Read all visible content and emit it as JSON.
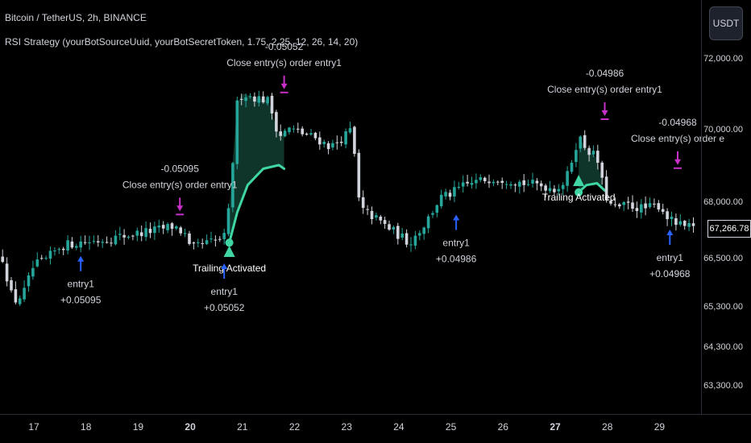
{
  "header": {
    "symbol": "Bitcoin / TetherUS, 2h, BINANCE",
    "strategy": "RSI Strategy (yourBotSourceUuid, yourBotSecretToken, 1.75, 2.25, 12, 26, 14, 20)"
  },
  "currency_label": "USDT",
  "last_price_label": "67,266.78",
  "colors": {
    "up": "#26a69a",
    "down": "#d1d4dc",
    "trail": "#3fd6a4",
    "close_marker": "#c82fc8",
    "entry_marker": "#2962ff"
  },
  "chart_data": {
    "type": "candlestick",
    "x_ticks": [
      {
        "label": "17",
        "day": 17
      },
      {
        "label": "18",
        "day": 18
      },
      {
        "label": "19",
        "day": 19
      },
      {
        "label": "20",
        "day": 20,
        "bold": true
      },
      {
        "label": "21",
        "day": 21
      },
      {
        "label": "22",
        "day": 22
      },
      {
        "label": "23",
        "day": 23
      },
      {
        "label": "24",
        "day": 24
      },
      {
        "label": "25",
        "day": 25
      },
      {
        "label": "26",
        "day": 26
      },
      {
        "label": "27",
        "day": 27,
        "bold": true
      },
      {
        "label": "28",
        "day": 28
      },
      {
        "label": "29",
        "day": 29
      }
    ],
    "y_ticks": [
      {
        "label": "72,000.00",
        "value": 72000
      },
      {
        "label": "70,000.00",
        "value": 70000
      },
      {
        "label": "68,000.00",
        "value": 68000
      },
      {
        "label": "66,500.00",
        "value": 66500
      },
      {
        "label": "65,300.00",
        "value": 65300
      },
      {
        "label": "64,300.00",
        "value": 64300
      },
      {
        "label": "63,300.00",
        "value": 63300
      }
    ],
    "last_price": 67266.78,
    "close_path": [
      [
        16.4,
        66500
      ],
      [
        16.6,
        65400
      ],
      [
        16.8,
        65600
      ],
      [
        17.0,
        66300
      ],
      [
        17.2,
        66400
      ],
      [
        17.5,
        66800
      ],
      [
        17.8,
        66900
      ],
      [
        18.2,
        66950
      ],
      [
        18.6,
        67050
      ],
      [
        19.0,
        67150
      ],
      [
        19.4,
        67250
      ],
      [
        19.7,
        67350
      ],
      [
        19.9,
        67100
      ],
      [
        20.0,
        66700
      ],
      [
        20.2,
        66850
      ],
      [
        20.5,
        66950
      ],
      [
        20.65,
        67050
      ],
      [
        20.75,
        67850
      ],
      [
        20.9,
        70700
      ],
      [
        21.0,
        71000
      ],
      [
        21.2,
        70900
      ],
      [
        21.5,
        70800
      ],
      [
        21.7,
        69800
      ],
      [
        21.9,
        70000
      ],
      [
        22.1,
        69900
      ],
      [
        22.4,
        69750
      ],
      [
        22.7,
        69500
      ],
      [
        23.0,
        69850
      ],
      [
        23.1,
        70000
      ],
      [
        23.25,
        67800
      ],
      [
        23.5,
        67600
      ],
      [
        23.8,
        67300
      ],
      [
        24.0,
        67100
      ],
      [
        24.2,
        66900
      ],
      [
        24.5,
        67400
      ],
      [
        24.8,
        68100
      ],
      [
        25.0,
        68200
      ],
      [
        25.2,
        68400
      ],
      [
        25.5,
        68550
      ],
      [
        25.8,
        68650
      ],
      [
        26.1,
        68600
      ],
      [
        26.4,
        68500
      ],
      [
        26.7,
        68450
      ],
      [
        27.0,
        68350
      ],
      [
        27.2,
        68550
      ],
      [
        27.45,
        69800
      ],
      [
        27.6,
        69450
      ],
      [
        27.8,
        69200
      ],
      [
        27.95,
        68200
      ],
      [
        28.1,
        67800
      ],
      [
        28.4,
        67900
      ],
      [
        28.7,
        67800
      ],
      [
        29.0,
        67900
      ],
      [
        29.2,
        67500
      ],
      [
        29.4,
        67350
      ],
      [
        29.65,
        67266.78
      ]
    ],
    "trailing_stops": [
      {
        "points": [
          [
            20.75,
            66900
          ],
          [
            20.9,
            67700
          ],
          [
            21.1,
            68450
          ],
          [
            21.4,
            68900
          ],
          [
            21.7,
            69000
          ],
          [
            21.8,
            68900
          ]
        ],
        "start_day": 20.75,
        "end_day": 21.8
      },
      {
        "points": [
          [
            27.45,
            68250
          ],
          [
            27.6,
            68450
          ],
          [
            27.8,
            68500
          ],
          [
            27.95,
            68300
          ]
        ],
        "start_day": 27.45,
        "end_day": 27.95
      }
    ],
    "trades": [
      {
        "type": "entry",
        "day": 17.9,
        "price": 67000,
        "label": "entry1",
        "profit": "+0.05095"
      },
      {
        "type": "close",
        "day": 19.8,
        "price": 67200,
        "label": "Close entry(s) order entry1",
        "value": "-0.05095"
      },
      {
        "type": "entry",
        "day": 20.65,
        "price": 66800,
        "label": "entry1",
        "profit": "+0.05052"
      },
      {
        "type": "close",
        "day": 21.8,
        "price": 70550,
        "label": "Close entry(s) order entry1",
        "value": "-0.05052"
      },
      {
        "type": "entry",
        "day": 25.1,
        "price": 68100,
        "label": "entry1",
        "profit": "+0.04986"
      },
      {
        "type": "close",
        "day": 27.95,
        "price": 69800,
        "label": "Close entry(s) order entry1",
        "value": "-0.04986"
      },
      {
        "type": "entry",
        "day": 29.2,
        "price": 67700,
        "label": "entry1",
        "profit": "+0.04968"
      },
      {
        "type": "close",
        "day": 29.35,
        "price": 68450,
        "label": "Close entry(s) order e",
        "value": "-0.04968"
      }
    ],
    "trailing_activated": [
      {
        "day": 20.75,
        "label": "Trailing Activated"
      },
      {
        "day": 27.45,
        "label": "Trailing Activated"
      }
    ]
  }
}
